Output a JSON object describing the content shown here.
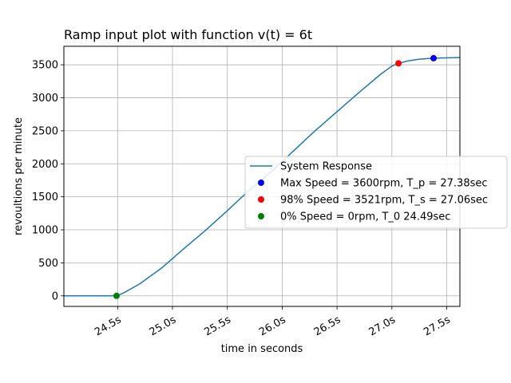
{
  "chart_data": {
    "type": "line",
    "title": "Ramp input plot with function v(t) = 6t",
    "xlabel": "time in seconds",
    "ylabel": "revoultions per minute",
    "xlim": [
      24.01,
      27.62
    ],
    "ylim": [
      -160,
      3780
    ],
    "grid": true,
    "legend_position": "right",
    "xticks": [
      24.5,
      25.0,
      25.5,
      26.0,
      26.5,
      27.0,
      27.5
    ],
    "xtick_labels": [
      "24.5s",
      "25.0s",
      "25.5s",
      "26.0s",
      "26.5s",
      "27.0s",
      "27.5s"
    ],
    "yticks": [
      0,
      500,
      1000,
      1500,
      2000,
      2500,
      3000,
      3500
    ],
    "ytick_labels": [
      "0",
      "500",
      "1000",
      "1500",
      "2000",
      "2500",
      "3000",
      "3500"
    ],
    "series": [
      {
        "name": "System Response",
        "kind": "line",
        "color": "#1f77b4",
        "x": [
          24.01,
          24.2,
          24.4,
          24.49,
          24.55,
          24.7,
          24.9,
          25.1,
          25.3,
          25.5,
          25.7,
          25.9,
          26.1,
          26.3,
          26.5,
          26.7,
          26.9,
          27.0,
          27.06,
          27.15,
          27.25,
          27.38,
          27.5,
          27.62
        ],
        "y": [
          0,
          0,
          0,
          0,
          40,
          180,
          420,
          710,
          990,
          1290,
          1600,
          1880,
          2190,
          2500,
          2790,
          3080,
          3360,
          3480,
          3521,
          3560,
          3585,
          3600,
          3605,
          3610
        ]
      },
      {
        "name": "Max Speed = 3600rpm, T_p = 27.38sec",
        "kind": "point",
        "color": "#0000ff",
        "x": [
          27.38
        ],
        "y": [
          3600
        ]
      },
      {
        "name": "98% Speed = 3521rpm, T_s = 27.06sec",
        "kind": "point",
        "color": "#ff0000",
        "x": [
          27.06
        ],
        "y": [
          3521
        ]
      },
      {
        "name": "0% Speed = 0rpm, T_0 24.49sec",
        "kind": "point",
        "color": "#008000",
        "x": [
          24.49
        ],
        "y": [
          0
        ]
      }
    ]
  }
}
